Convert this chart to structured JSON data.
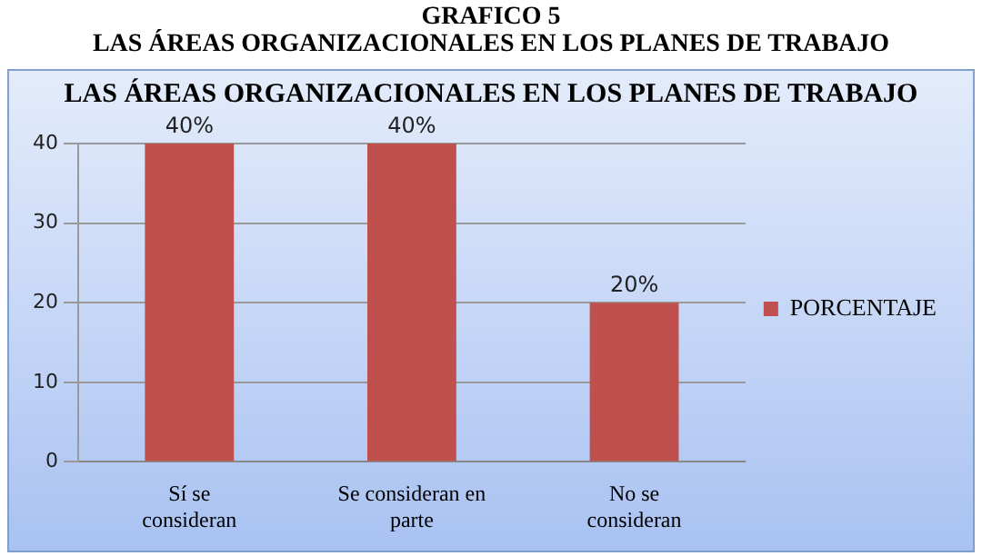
{
  "chart_data": {
    "type": "bar",
    "title": "LAS ÁREAS ORGANIZACIONALES EN LOS PLANES DE TRABAJO",
    "annotations": [
      "GRAFICO 5",
      "LAS ÁREAS ORGANIZACIONALES EN LOS PLANES DE TRABAJO"
    ],
    "categories": [
      "Sí se consideran",
      "Se consideran en parte",
      "No se consideran"
    ],
    "series": [
      {
        "name": "PORCENTAJE",
        "color": "#c0504d",
        "values": [
          40,
          40,
          20
        ],
        "value_labels": [
          "40%",
          "40%",
          "20%"
        ]
      }
    ],
    "ylim": [
      0,
      40
    ],
    "yticks": [
      0,
      10,
      20,
      30,
      40
    ],
    "grid": "y",
    "legend": "right"
  }
}
